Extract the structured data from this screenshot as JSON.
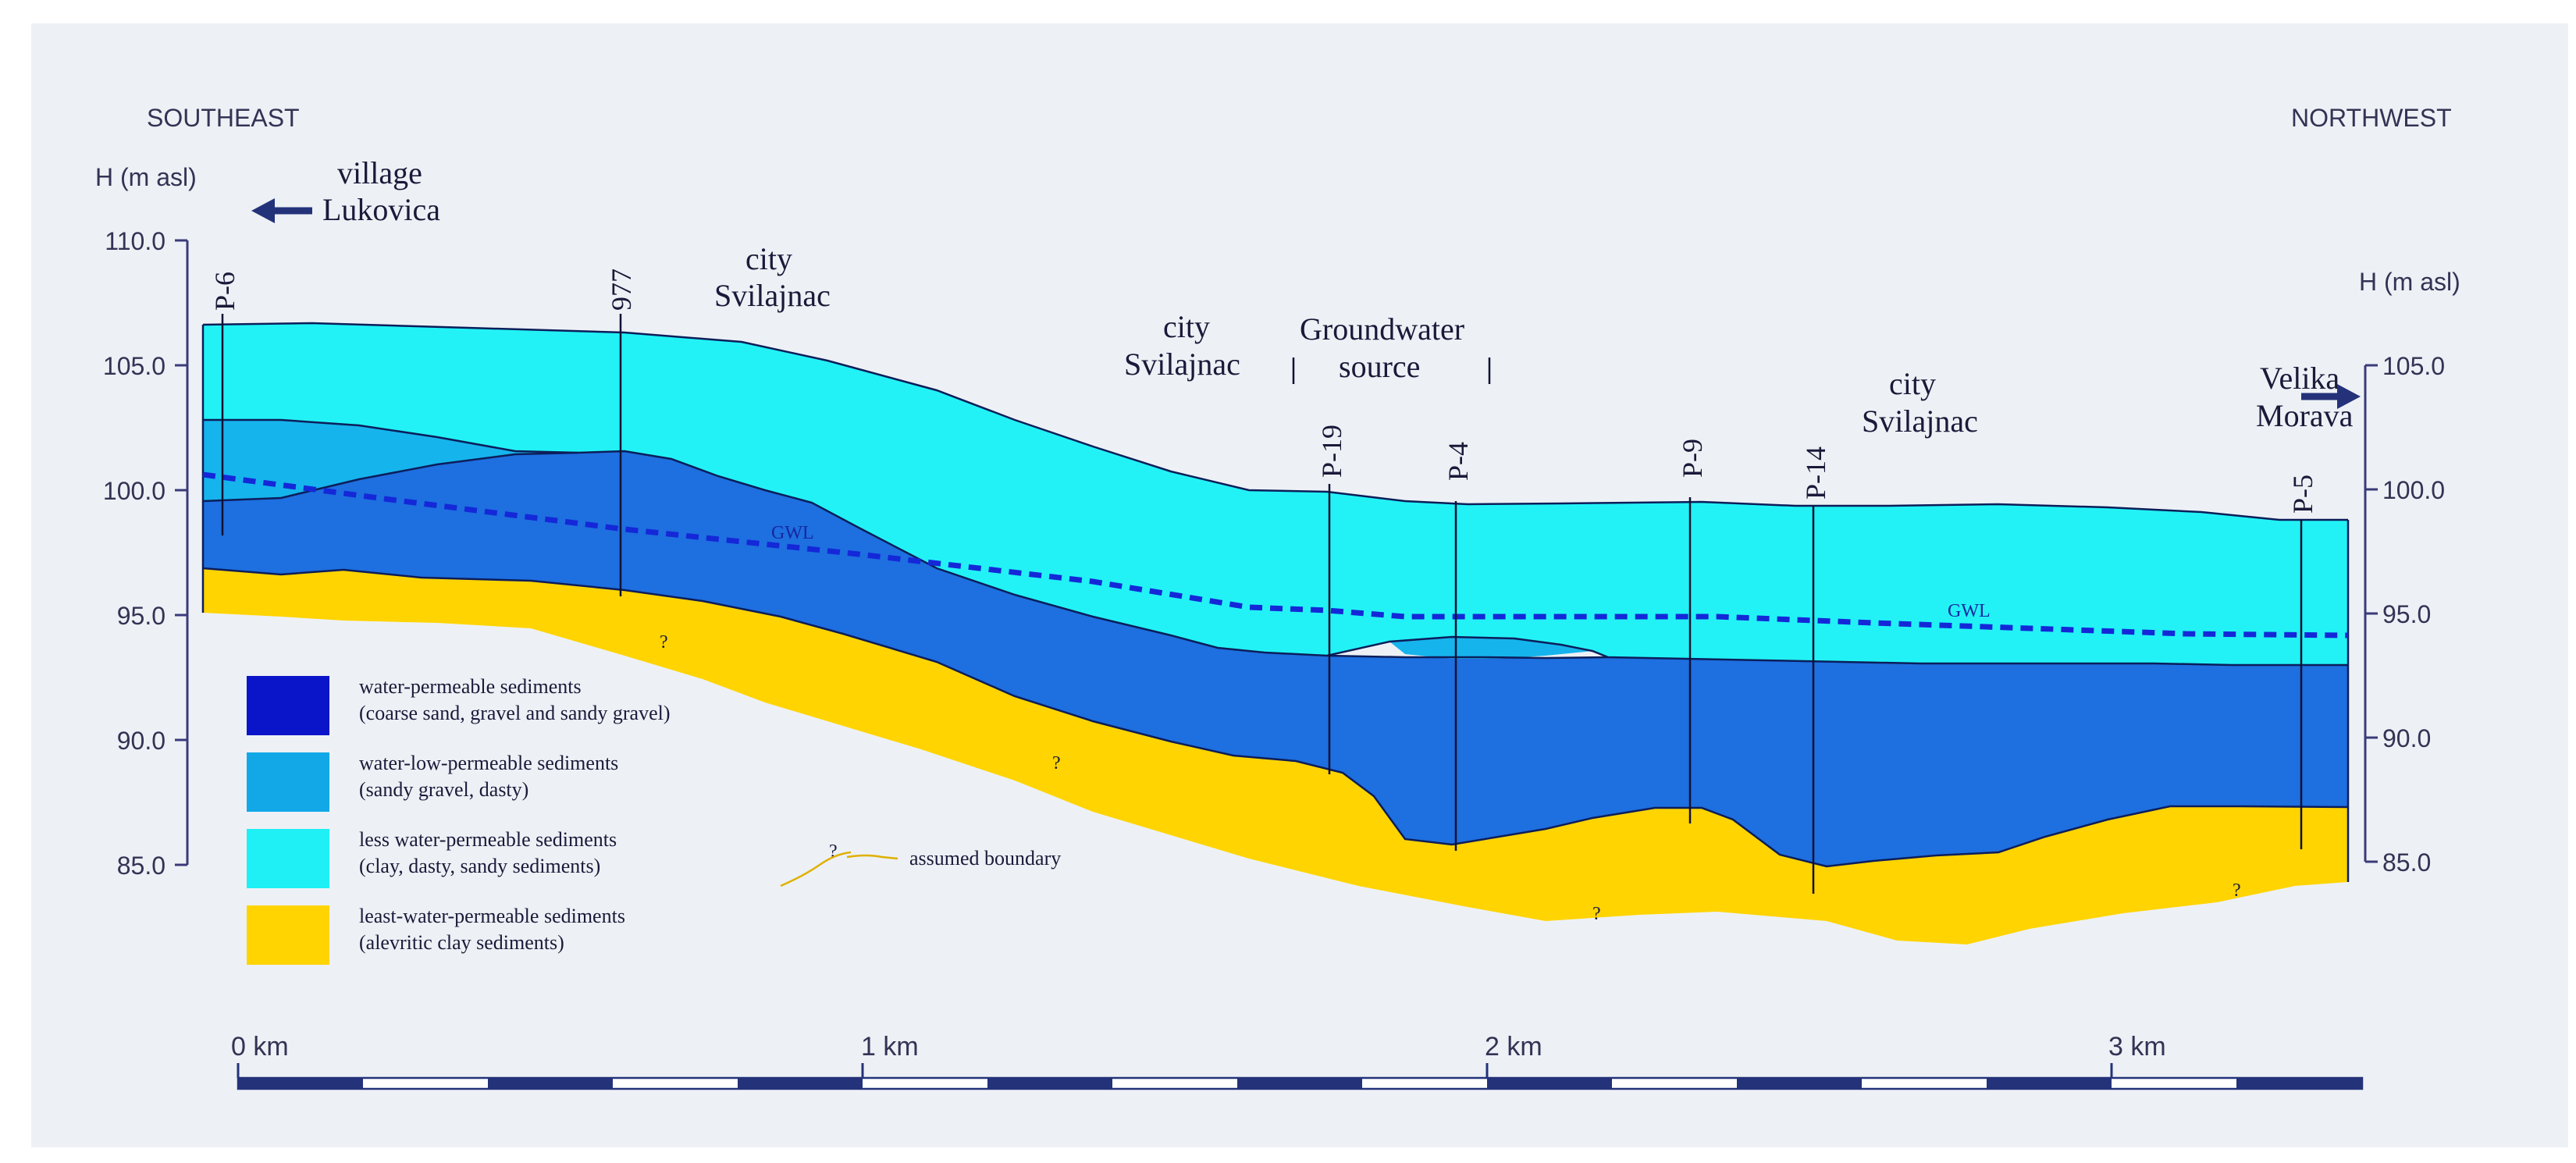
{
  "header": {
    "left_direction": "SOUTHEAST",
    "right_direction": "NORTHWEST",
    "left_axis_title": "H (m asl)",
    "right_axis_title": "H (m asl)"
  },
  "left_axis": {
    "ticks": [
      "110.0",
      "105.0",
      "100.0",
      "95.0",
      "90.0",
      "85.0"
    ]
  },
  "right_axis": {
    "ticks": [
      "105.0",
      "100.0",
      "95.0",
      "90.0",
      "85.0"
    ]
  },
  "places": {
    "village_line1": "village",
    "village_line2": "Lukovica",
    "city1_line1": "city",
    "city1_line2": "Svilajnac",
    "city2_line1": "city",
    "city2_line2": "Svilajnac",
    "source_line1": "Groundwater",
    "source_line2": "source",
    "city3_line1": "city",
    "city3_line2": "Svilajnac",
    "river_line1": "Velika",
    "river_line2": "Morava"
  },
  "boreholes": [
    "P-6",
    "977",
    "P-19",
    "P-4",
    "P-9",
    "P-14",
    "P-5"
  ],
  "annotations": {
    "gwl_label": "GWL",
    "question_mark": "?"
  },
  "legend": {
    "items": [
      {
        "line1": "water-permeable sediments",
        "line2": "(coarse sand, gravel and sandy gravel)",
        "color": "#0a14c8"
      },
      {
        "line1": "water-low-permeable sediments",
        "line2": "(sandy gravel, dasty)",
        "color": "#12a8e8"
      },
      {
        "line1": "less water-permeable sediments",
        "line2": "(clay, dasty, sandy sediments)",
        "color": "#1ef0f5"
      },
      {
        "line1": "least-water-permeable sediments",
        "line2": "(alevritic clay sediments)",
        "color": "#ffd400"
      }
    ],
    "assumed_boundary": "assumed boundary"
  },
  "scale_bar": {
    "labels": [
      "0 km",
      "1 km",
      "2 km",
      "3 km"
    ]
  },
  "colors": {
    "background": "#edf1f5",
    "permeable": "#1e6fe0",
    "low_permeable": "#16b4ec",
    "less_permeable": "#22f2f6",
    "least_permeable": "#ffd400",
    "axis": "#3a3a7a",
    "gwl": "#1428d8",
    "scale_dark": "#24327a"
  }
}
